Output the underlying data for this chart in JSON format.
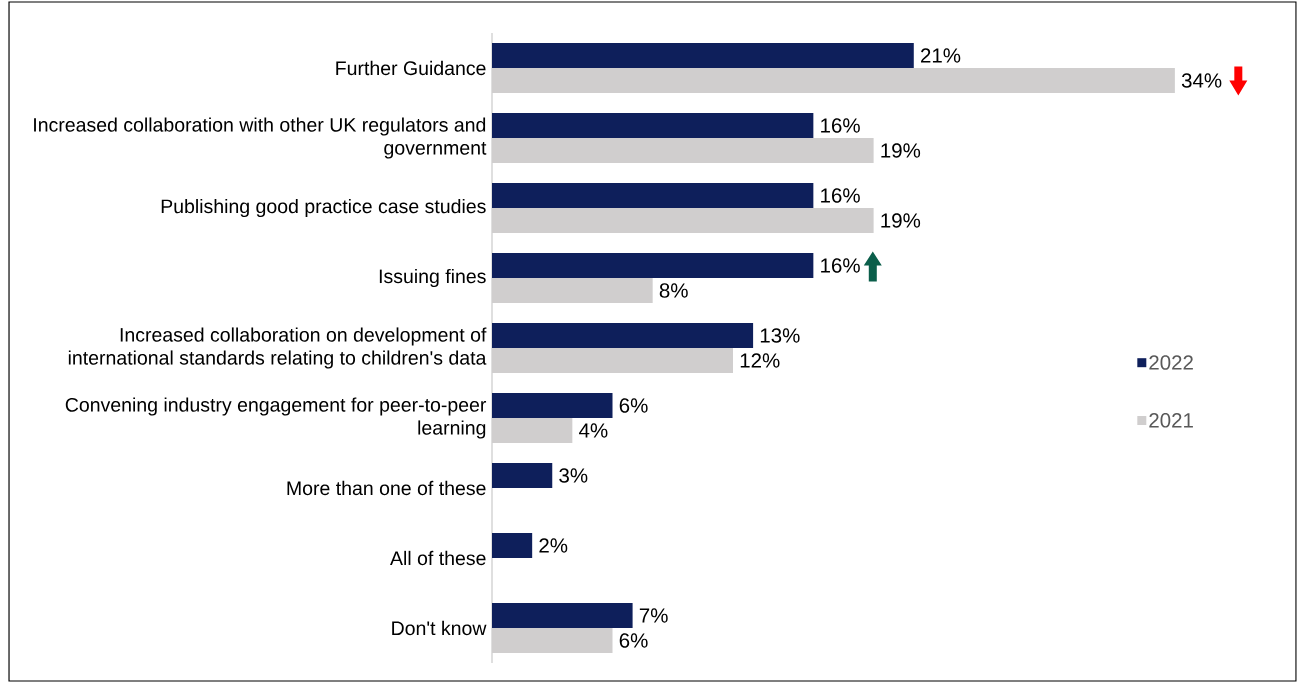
{
  "chart_data": {
    "type": "bar",
    "orientation": "horizontal",
    "categories": [
      "Further Guidance",
      "Increased collaboration with other UK regulators and government",
      "Publishing good practice case studies",
      "Issuing fines",
      "Increased collaboration on development of international standards relating to children's data",
      "Convening industry engagement for peer-to-peer learning",
      "More than one of these",
      "All of these",
      "Don't know"
    ],
    "series": [
      {
        "name": "2022",
        "color": "#0e1f5b",
        "values": [
          21,
          16,
          16,
          16,
          13,
          6,
          3,
          2,
          7
        ],
        "value_labels": [
          "21%",
          "16%",
          "16%",
          "16%",
          "13%",
          "6%",
          "3%",
          "2%",
          "7%"
        ]
      },
      {
        "name": "2021",
        "color": "#d0cece",
        "values": [
          34,
          19,
          19,
          8,
          12,
          4,
          null,
          null,
          6
        ],
        "value_labels": [
          "34%",
          "19%",
          "19%",
          "8%",
          "12%",
          "4%",
          null,
          null,
          "6%"
        ]
      }
    ],
    "legend": "right"
  }
}
